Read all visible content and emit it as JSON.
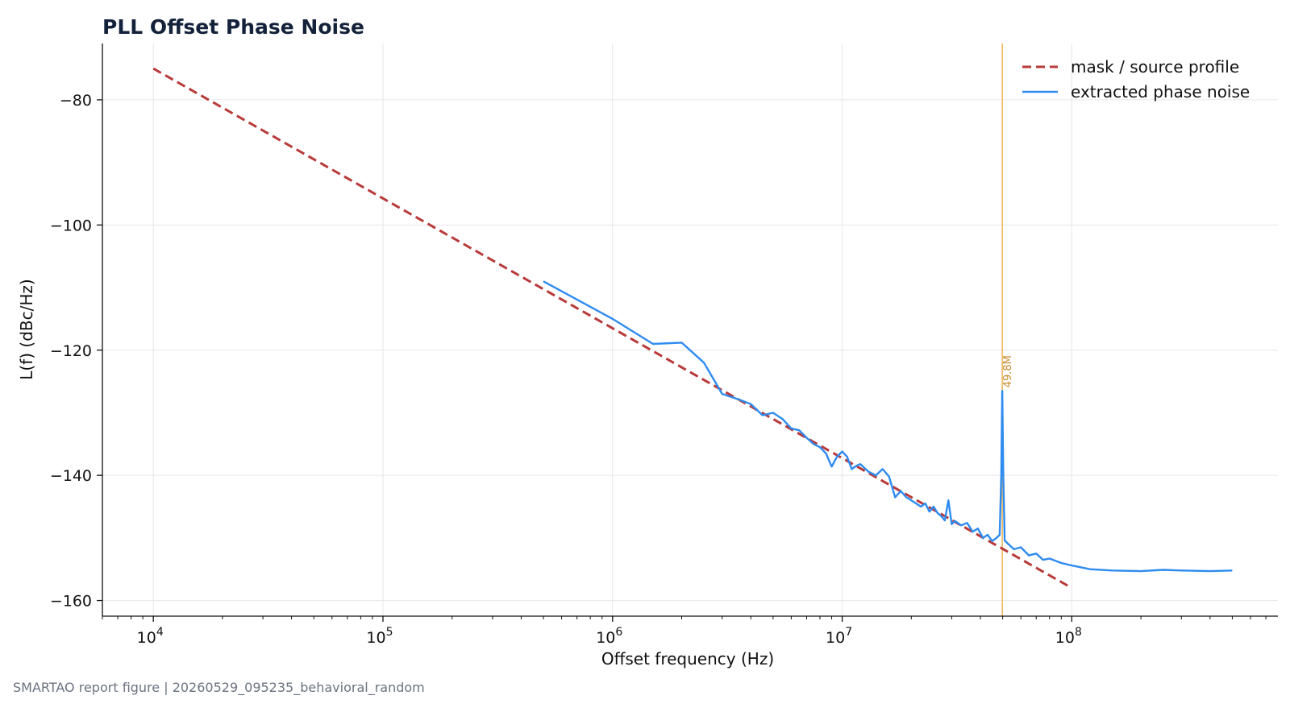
{
  "chart_data": {
    "type": "line",
    "title": "PLL Offset Phase Noise",
    "xlabel": "Offset frequency (Hz)",
    "ylabel": "L(f) (dBc/Hz)",
    "xscale": "log",
    "xlim": [
      6000,
      790000000
    ],
    "ylim": [
      -162.5,
      -71
    ],
    "x_ticks": [
      {
        "value": 10000,
        "base": "10",
        "exp": "4"
      },
      {
        "value": 100000,
        "base": "10",
        "exp": "5"
      },
      {
        "value": 1000000,
        "base": "10",
        "exp": "6"
      },
      {
        "value": 10000000,
        "base": "10",
        "exp": "7"
      },
      {
        "value": 100000000,
        "base": "10",
        "exp": "8"
      }
    ],
    "y_ticks": [
      {
        "value": -80,
        "label": "−80"
      },
      {
        "value": -100,
        "label": "−100"
      },
      {
        "value": -120,
        "label": "−120"
      },
      {
        "value": -140,
        "label": "−140"
      },
      {
        "value": -160,
        "label": "−160"
      }
    ],
    "grid": true,
    "legend_position": "top-right",
    "series": [
      {
        "name": "mask / source profile",
        "style": "dashed",
        "color": "#b83a3a",
        "points": [
          [
            10000,
            -75
          ],
          [
            100000000,
            -158
          ]
        ]
      },
      {
        "name": "extracted phase noise",
        "style": "solid",
        "color": "#2e8bf0",
        "points": [
          [
            500000,
            -109
          ],
          [
            1000000,
            -115
          ],
          [
            1500000,
            -119
          ],
          [
            2000000,
            -118.8
          ],
          [
            2500000,
            -122
          ],
          [
            3000000,
            -127
          ],
          [
            3500000,
            -127.8
          ],
          [
            4000000,
            -128.6
          ],
          [
            4500000,
            -130.4
          ],
          [
            5000000,
            -130
          ],
          [
            5500000,
            -131
          ],
          [
            6000000,
            -132.5
          ],
          [
            6500000,
            -132.8
          ],
          [
            7000000,
            -134
          ],
          [
            7500000,
            -135
          ],
          [
            8000000,
            -135.5
          ],
          [
            8500000,
            -136.5
          ],
          [
            9000000,
            -138.6
          ],
          [
            9500000,
            -137
          ],
          [
            10000000,
            -136.2
          ],
          [
            10500000,
            -137
          ],
          [
            11000000,
            -139
          ],
          [
            11500000,
            -138.5
          ],
          [
            12000000,
            -138.2
          ],
          [
            13000000,
            -139.4
          ],
          [
            14000000,
            -140
          ],
          [
            15000000,
            -139
          ],
          [
            16000000,
            -140.2
          ],
          [
            17000000,
            -143.5
          ],
          [
            18000000,
            -142.5
          ],
          [
            19000000,
            -143.5
          ],
          [
            20000000,
            -144
          ],
          [
            21000000,
            -144.5
          ],
          [
            22000000,
            -145
          ],
          [
            23000000,
            -144.5
          ],
          [
            24000000,
            -145.8
          ],
          [
            25000000,
            -145
          ],
          [
            26000000,
            -146
          ],
          [
            27000000,
            -146.5
          ],
          [
            28000000,
            -147.2
          ],
          [
            29000000,
            -144
          ],
          [
            30000000,
            -147.8
          ],
          [
            31000000,
            -147.3
          ],
          [
            33000000,
            -148
          ],
          [
            35000000,
            -147.6
          ],
          [
            37000000,
            -149
          ],
          [
            39000000,
            -148.5
          ],
          [
            41000000,
            -150
          ],
          [
            43000000,
            -149.5
          ],
          [
            45000000,
            -150.5
          ],
          [
            47000000,
            -150
          ],
          [
            48500000,
            -149.5
          ],
          [
            49300000,
            -140
          ],
          [
            49800000,
            -126.5
          ],
          [
            50300000,
            -140
          ],
          [
            51000000,
            -150.4
          ],
          [
            53000000,
            -151
          ],
          [
            56000000,
            -151.8
          ],
          [
            60000000,
            -151.5
          ],
          [
            65000000,
            -152.8
          ],
          [
            70000000,
            -152.5
          ],
          [
            75000000,
            -153.5
          ],
          [
            80000000,
            -153.3
          ],
          [
            90000000,
            -154
          ],
          [
            100000000,
            -154.4
          ],
          [
            120000000,
            -155
          ],
          [
            150000000,
            -155.2
          ],
          [
            200000000,
            -155.3
          ],
          [
            250000000,
            -155.1
          ],
          [
            300000000,
            -155.2
          ],
          [
            400000000,
            -155.3
          ],
          [
            500000000,
            -155.2
          ]
        ]
      }
    ],
    "annotations": [
      {
        "x": 49800000,
        "label": "49.8M",
        "color": "#f0b860"
      }
    ]
  },
  "footer": "SMARTAO report figure | 20260529_095235_behavioral_random"
}
